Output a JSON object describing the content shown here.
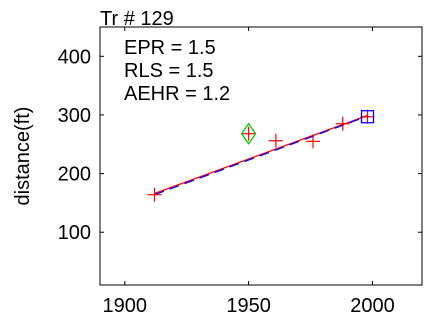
{
  "chart_data": {
    "type": "scatter",
    "title": "Tr # 129",
    "xlabel": "",
    "ylabel": "distance(ft)",
    "xlim": [
      1890,
      2020
    ],
    "ylim": [
      10,
      450
    ],
    "x_ticks": [
      1900,
      1950,
      2000
    ],
    "y_ticks": [
      100,
      200,
      300,
      400
    ],
    "x_tick_labels": [
      "1900",
      "1950",
      "2000"
    ],
    "y_tick_labels": [
      "100",
      "200",
      "300",
      "400"
    ],
    "grid": false,
    "annotations": [
      "EPR = 1.5",
      "RLS = 1.5",
      "AEHR = 1.2"
    ],
    "series": [
      {
        "marker": "plus",
        "color": "#ff0000",
        "points": [
          [
            1912,
            164
          ],
          [
            1950,
            268
          ],
          [
            1961,
            256
          ],
          [
            1976,
            255
          ],
          [
            1988,
            285
          ],
          [
            1998,
            297
          ]
        ]
      },
      {
        "marker": "diamond",
        "color": "#00cc00",
        "points": [
          [
            1950,
            268
          ]
        ]
      },
      {
        "marker": "square",
        "color": "#0000ff",
        "points": [
          [
            1998,
            297
          ]
        ]
      },
      {
        "marker": "line",
        "color": "#ff0000",
        "style": "solid",
        "points": [
          [
            1912,
            166
          ],
          [
            1998,
            299
          ]
        ]
      },
      {
        "marker": "line",
        "color": "#0000ff",
        "style": "dashed",
        "points": [
          [
            1912,
            164
          ],
          [
            1998,
            298
          ]
        ]
      }
    ]
  }
}
